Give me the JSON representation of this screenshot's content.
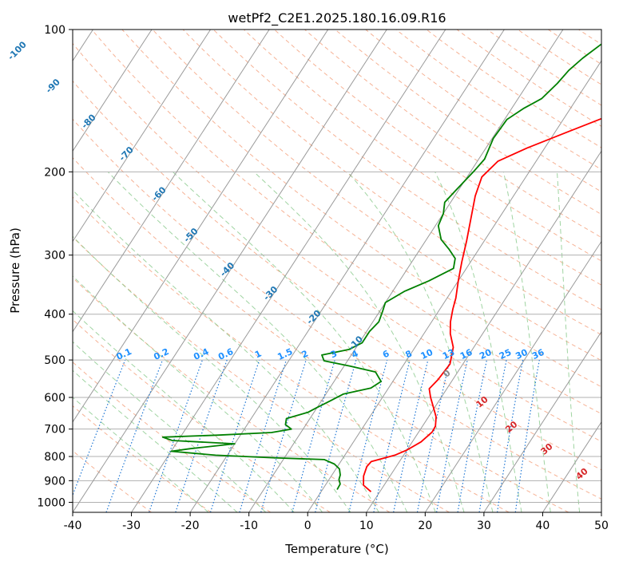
{
  "chart_data": {
    "type": "line",
    "title": "wetPf2_C2E1.2025.180.16.09.R16",
    "xlabel": "Temperature (°C)",
    "ylabel": "Pressure (hPa)",
    "xlim": [
      -40,
      50
    ],
    "ylim": [
      1050,
      100
    ],
    "y_scale": "log",
    "x_ticks": [
      -40,
      -30,
      -20,
      -10,
      0,
      10,
      20,
      30,
      40,
      50
    ],
    "y_ticks": [
      1000,
      900,
      800,
      700,
      600,
      500,
      400,
      300,
      200,
      100
    ],
    "grid": true,
    "series": [
      {
        "color": "#ff0000",
        "points": [
          [
            8.5,
            950
          ],
          [
            6.5,
            920
          ],
          [
            5.5,
            880
          ],
          [
            5,
            840
          ],
          [
            5.2,
            820
          ],
          [
            6.5,
            810
          ],
          [
            8.5,
            795
          ],
          [
            10,
            775
          ],
          [
            11.5,
            745
          ],
          [
            12.3,
            710
          ],
          [
            12.2,
            690
          ],
          [
            11.3,
            660
          ],
          [
            9.8,
            630
          ],
          [
            8.2,
            600
          ],
          [
            7,
            575
          ],
          [
            7.5,
            550
          ],
          [
            7.8,
            510
          ],
          [
            6.5,
            470
          ],
          [
            4.5,
            440
          ],
          [
            3.2,
            415
          ],
          [
            2.2,
            390
          ],
          [
            1.5,
            370
          ],
          [
            0,
            340
          ],
          [
            -1.5,
            310
          ],
          [
            -3,
            280
          ],
          [
            -4.5,
            255
          ],
          [
            -6.5,
            225
          ],
          [
            -7.5,
            205
          ],
          [
            -6.5,
            190
          ],
          [
            -3,
            178
          ],
          [
            2,
            165
          ],
          [
            7,
            153
          ],
          [
            10.5,
            142
          ],
          [
            13.5,
            132
          ],
          [
            15.5,
            122
          ],
          [
            17,
            113
          ],
          [
            17.8,
            106
          ],
          [
            18.2,
            100
          ]
        ]
      },
      {
        "color": "#008000",
        "points": [
          [
            2.5,
            940
          ],
          [
            2.4,
            915
          ],
          [
            1.7,
            895
          ],
          [
            1.4,
            875
          ],
          [
            0.6,
            850
          ],
          [
            -0.8,
            830
          ],
          [
            -3,
            812
          ],
          [
            -12,
            805
          ],
          [
            -22,
            795
          ],
          [
            -30,
            780
          ],
          [
            -27,
            770
          ],
          [
            -20,
            752
          ],
          [
            -31,
            740
          ],
          [
            -33,
            728
          ],
          [
            -24,
            721
          ],
          [
            -15,
            712
          ],
          [
            -12,
            700
          ],
          [
            -13.5,
            685
          ],
          [
            -14,
            665
          ],
          [
            -11,
            645
          ],
          [
            -10,
            630
          ],
          [
            -8.5,
            610
          ],
          [
            -7,
            590
          ],
          [
            -3,
            573
          ],
          [
            -2,
            555
          ],
          [
            -4,
            530
          ],
          [
            -9,
            515
          ],
          [
            -14,
            502
          ],
          [
            -15,
            488
          ],
          [
            -11,
            475
          ],
          [
            -9.5,
            460
          ],
          [
            -9.5,
            435
          ],
          [
            -9,
            415
          ],
          [
            -9.5,
            395
          ],
          [
            -10,
            378
          ],
          [
            -8,
            358
          ],
          [
            -5,
            340
          ],
          [
            -2.2,
            320
          ],
          [
            -3,
            305
          ],
          [
            -5,
            292
          ],
          [
            -7.5,
            278
          ],
          [
            -9.5,
            260
          ],
          [
            -10,
            245
          ],
          [
            -11,
            232
          ],
          [
            -10.5,
            220
          ],
          [
            -9.5,
            200
          ],
          [
            -9,
            188
          ],
          [
            -9.8,
            170
          ],
          [
            -9.6,
            155
          ],
          [
            -8,
            147
          ],
          [
            -6,
            140
          ],
          [
            -5,
            130
          ],
          [
            -4.5,
            122
          ],
          [
            -3.5,
            115
          ],
          [
            -2,
            108
          ],
          [
            0.5,
            100
          ]
        ]
      }
    ],
    "isotherm_labels": [
      "-100",
      "-90",
      "-80",
      "-70",
      "-60",
      "-50",
      "-40",
      "-30",
      "-20",
      "-10"
    ],
    "mixing_ratio_labels": [
      "0.1",
      "0.2",
      "0.4",
      "0.6",
      "1",
      "1.5",
      "2",
      "3",
      "4",
      "6",
      "8",
      "10",
      "13",
      "16",
      "20",
      "25",
      "30",
      "36"
    ],
    "moist_adiabat_labels": [
      "0",
      "10",
      "20",
      "30",
      "40"
    ],
    "colors": {
      "temperature": "#ff0000",
      "dewpoint": "#008000",
      "isotherm": "#9a9a9a",
      "isotherm_label": "#1f77b4",
      "dry_adiabat": "#f4a582",
      "moist_adiabat": "#88c98b",
      "mixing_ratio": "#1f77d4",
      "mixing_ratio_label": "#1e90ff",
      "moist_label": "#d62728",
      "grid": "#b0b0b0"
    }
  }
}
